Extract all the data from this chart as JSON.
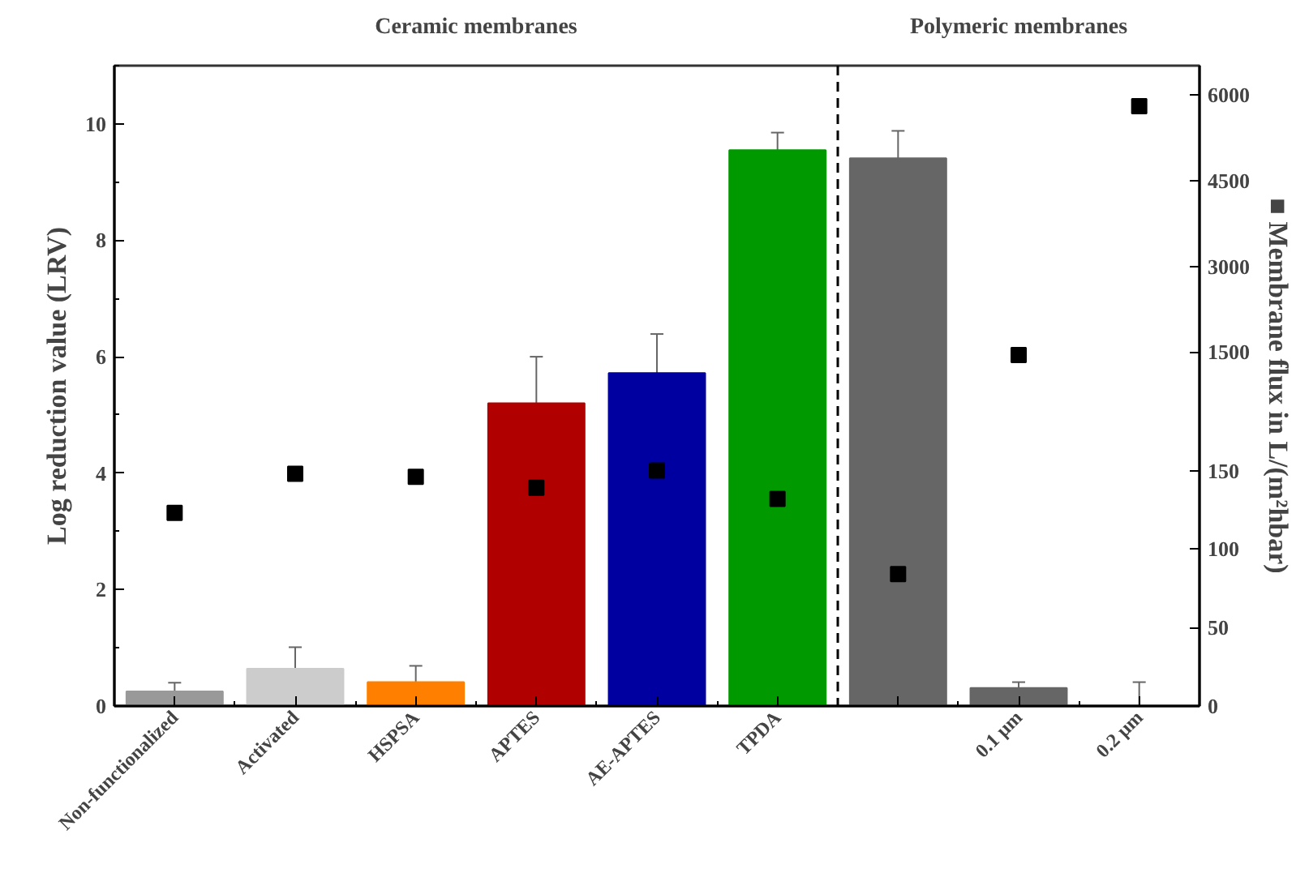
{
  "chart_data": {
    "type": "bar",
    "ylabel": "Log reduction value (LRV)",
    "y2label": "■ Membrane flux in L/(m²hbar)",
    "annotations": [
      "Ceramic membranes",
      "Polymeric membranes"
    ],
    "categories": [
      "Non-functionalized",
      "Activated",
      "HSPSA",
      "APTES",
      "AE-APTES",
      "TPDA",
      null,
      "0.1 µm",
      "0.2 µm"
    ],
    "series": [
      {
        "values": [
          0.25,
          0.64,
          0.41,
          5.2,
          5.72,
          9.55,
          9.41,
          0.31,
          0
        ],
        "colors": [
          "#999999",
          "#cccccc",
          "#ff8000",
          "#b00000",
          "#0000a0",
          "#009900",
          "#666666",
          "#666666",
          "#666666"
        ],
        "errors": [
          0.15,
          0.37,
          0.28,
          0.8,
          0.67,
          0.3,
          0.47,
          0.1,
          [
            0,
            0.41
          ]
        ]
      },
      {
        "type": "scatter",
        "axis": "y2",
        "color": "#000000",
        "marker": "square",
        "values": [
          123,
          148,
          146,
          139,
          150,
          132,
          84,
          null,
          null
        ]
      },
      {
        "type": "scatter",
        "axis": "y3",
        "color": "#000000",
        "marker": "square",
        "values": [
          null,
          null,
          null,
          null,
          null,
          null,
          null,
          1450,
          5800
        ]
      }
    ],
    "ylim": [
      0,
      11
    ],
    "yticks": [
      0,
      2,
      4,
      6,
      8,
      10
    ],
    "y2lim": [
      0,
      408
    ],
    "y2ticks": [
      0,
      50,
      100,
      150
    ],
    "y3lim": [
      -4690,
      6510
    ],
    "y3ticks": [
      1500,
      3000,
      4500,
      6000
    ],
    "grid": false
  }
}
